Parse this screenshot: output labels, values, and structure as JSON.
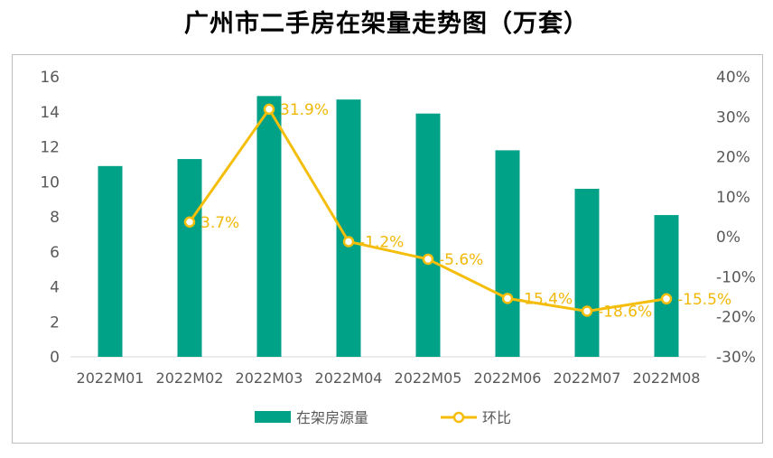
{
  "title": "广州市二手房在架量走势图（万套）",
  "chart_data": {
    "type": "bar",
    "categories": [
      "2022M01",
      "2022M02",
      "2022M03",
      "2022M04",
      "2022M05",
      "2022M06",
      "2022M07",
      "2022M08"
    ],
    "series": [
      {
        "name": "在架房源量",
        "type": "bar",
        "axis": "left",
        "values": [
          10.9,
          11.3,
          14.9,
          14.7,
          13.9,
          11.8,
          9.6,
          8.1
        ]
      },
      {
        "name": "环比",
        "type": "line",
        "axis": "right",
        "values": [
          null,
          3.7,
          31.9,
          -1.2,
          -5.6,
          -15.4,
          -18.6,
          -15.5
        ],
        "labels": [
          null,
          "3.7%",
          "31.9%",
          "-1.2%",
          "-5.6%",
          "-15.4%",
          "-18.6%",
          "-15.5%"
        ]
      }
    ],
    "y_left": {
      "min": 0,
      "max": 16,
      "ticks": [
        "0",
        "2",
        "4",
        "6",
        "8",
        "10",
        "12",
        "14",
        "16"
      ]
    },
    "y_right": {
      "min": -30,
      "max": 40,
      "ticks": [
        "-30%",
        "-20%",
        "-10%",
        "0%",
        "10%",
        "20%",
        "30%",
        "40%"
      ]
    },
    "legend_position": "bottom",
    "grid": false,
    "colors": {
      "bar": "#00a287",
      "line": "#f5be0b",
      "marker_fill": "#ffffff"
    }
  }
}
